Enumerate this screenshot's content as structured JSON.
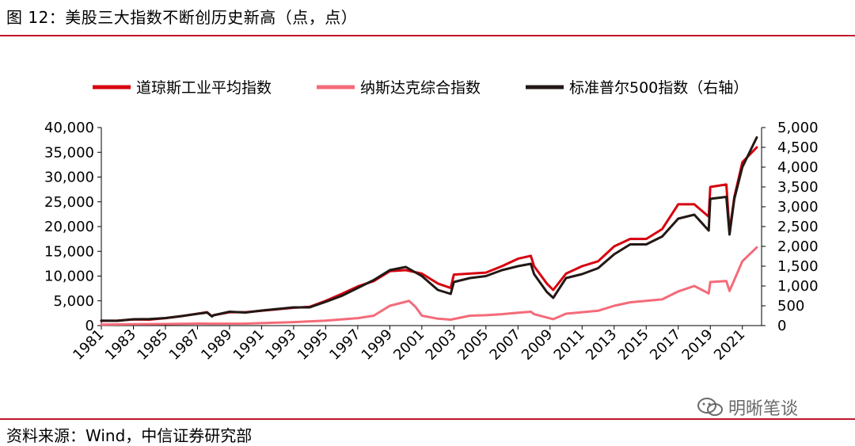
{
  "header": {
    "title": "图 12：美股三大指数不断创历史新高（点，点）"
  },
  "footer": {
    "source": "资料来源：Wind，中信证券研究部",
    "watermark": "明晰笔谈"
  },
  "colors": {
    "dow": "#d7000f",
    "nasdaq": "#f46b79",
    "sp500": "#231815",
    "rule": "#c0152a"
  },
  "chart_data": {
    "type": "line",
    "title": "",
    "xlabel": "",
    "ylabel": "",
    "x_ticks": [
      "1981",
      "1983",
      "1985",
      "1987",
      "1989",
      "1991",
      "1993",
      "1995",
      "1997",
      "1999",
      "2001",
      "2003",
      "2005",
      "2007",
      "2009",
      "2011",
      "2013",
      "2015",
      "2017",
      "2019",
      "2021"
    ],
    "xlim": [
      1981,
      2022.2
    ],
    "ylim_left": [
      0,
      40000
    ],
    "ylim_right": [
      0,
      5000
    ],
    "left_ticks": [
      "0",
      "5,000",
      "10,000",
      "15,000",
      "20,000",
      "25,000",
      "30,000",
      "35,000",
      "40,000"
    ],
    "right_ticks": [
      "0",
      "500",
      "1,000",
      "1,500",
      "2,000",
      "2,500",
      "3,000",
      "3,500",
      "4,000",
      "4,500",
      "5,000"
    ],
    "legend_position": "top",
    "series": [
      {
        "name": "道琼斯工业平均指数",
        "axis": "left",
        "color": "#d7000f",
        "x": [
          1981,
          1982,
          1983,
          1984,
          1985,
          1986,
          1987.6,
          1987.9,
          1988,
          1989,
          1990,
          1991,
          1992,
          1993,
          1994,
          1995,
          1996,
          1997,
          1998,
          1999,
          2000,
          2001,
          2002,
          2002.8,
          2003,
          2004,
          2005,
          2006,
          2007,
          2007.8,
          2008,
          2008.8,
          2009.2,
          2010,
          2011,
          2012,
          2013,
          2014,
          2015,
          2016,
          2017,
          2018,
          2018.9,
          2019,
          2020,
          2020.2,
          2020.5,
          2021,
          2021.9
        ],
        "y": [
          950,
          1000,
          1250,
          1200,
          1500,
          1900,
          2700,
          1900,
          2100,
          2700,
          2700,
          3000,
          3300,
          3600,
          3800,
          5000,
          6400,
          7900,
          9000,
          11000,
          11200,
          10500,
          8500,
          7600,
          10300,
          10500,
          10700,
          12000,
          13500,
          14100,
          12000,
          8500,
          7200,
          10500,
          12000,
          13000,
          16000,
          17500,
          17500,
          19500,
          24500,
          24500,
          22000,
          28000,
          28500,
          19000,
          26000,
          33000,
          36000
        ]
      },
      {
        "name": "纳斯达克综合指数",
        "axis": "left",
        "color": "#f46b79",
        "x": [
          1981,
          1983,
          1985,
          1987,
          1988,
          1990,
          1991,
          1993,
          1995,
          1997,
          1998,
          1999,
          2000.2,
          2000.6,
          2001,
          2002,
          2002.8,
          2004,
          2005,
          2006,
          2007,
          2007.8,
          2008,
          2009.2,
          2010,
          2011,
          2012,
          2013,
          2014,
          2015,
          2016,
          2017,
          2018,
          2018.9,
          2019,
          2020,
          2020.2,
          2021,
          2021.9
        ],
        "y": [
          200,
          280,
          320,
          400,
          380,
          400,
          500,
          700,
          1000,
          1500,
          2000,
          4000,
          5000,
          3800,
          2000,
          1400,
          1200,
          2000,
          2100,
          2300,
          2600,
          2800,
          2300,
          1300,
          2400,
          2700,
          3000,
          4000,
          4700,
          5000,
          5300,
          6900,
          8000,
          6500,
          8800,
          9000,
          7000,
          13000,
          15800
        ]
      },
      {
        "name": "标准普尔500指数（右轴）",
        "axis": "right",
        "color": "#231815",
        "x": [
          1981,
          1982,
          1983,
          1984,
          1985,
          1986,
          1987.6,
          1987.9,
          1988,
          1989,
          1990,
          1991,
          1992,
          1993,
          1994,
          1995,
          1996,
          1997,
          1998,
          1999,
          2000,
          2001,
          2002,
          2002.8,
          2003,
          2004,
          2005,
          2006,
          2007,
          2007.8,
          2008,
          2008.8,
          2009.2,
          2010,
          2011,
          2012,
          2013,
          2014,
          2015,
          2016,
          2017,
          2018,
          2018.9,
          2019,
          2020,
          2020.2,
          2020.5,
          2021,
          2021.9
        ],
        "y": [
          125,
          120,
          160,
          165,
          190,
          240,
          330,
          230,
          260,
          350,
          330,
          380,
          420,
          460,
          460,
          600,
          750,
          950,
          1150,
          1400,
          1480,
          1250,
          900,
          800,
          1100,
          1200,
          1250,
          1400,
          1500,
          1560,
          1300,
          850,
          700,
          1200,
          1300,
          1450,
          1800,
          2050,
          2050,
          2250,
          2700,
          2800,
          2400,
          3200,
          3250,
          2300,
          3200,
          4000,
          4750
        ]
      }
    ]
  }
}
